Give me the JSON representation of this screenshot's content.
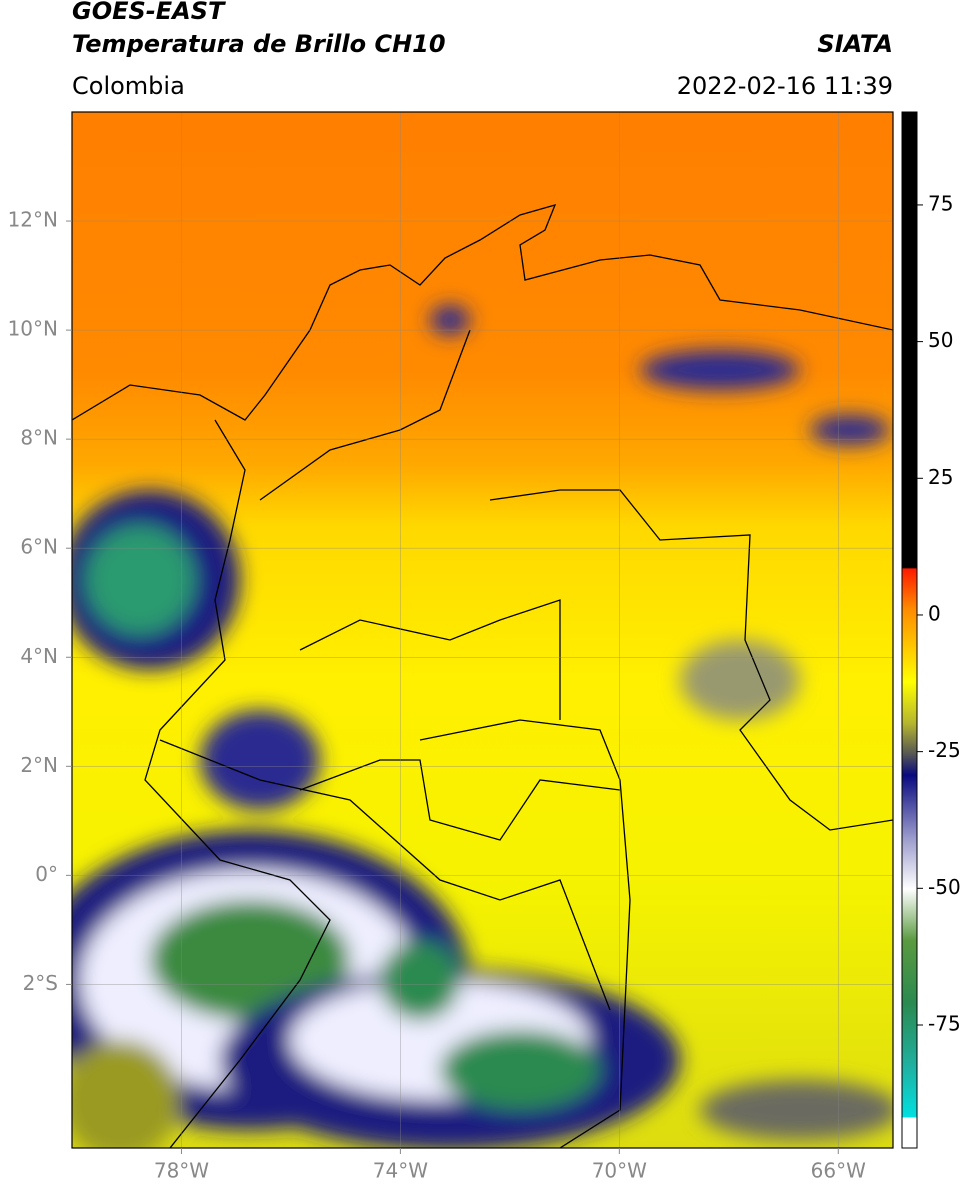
{
  "header": {
    "title": "GOES-EAST",
    "subtitle": "Temperatura de Brillo CH10",
    "region": "Colombia",
    "source": "SIATA",
    "datetime": "2022-02-16 11:39"
  },
  "map": {
    "xlim": [
      -80,
      -65
    ],
    "ylim": [
      -5,
      14
    ],
    "xticks": [
      {
        "value": -78,
        "label": "78°W"
      },
      {
        "value": -74,
        "label": "74°W"
      },
      {
        "value": -70,
        "label": "70°W"
      },
      {
        "value": -66,
        "label": "66°W"
      }
    ],
    "yticks": [
      {
        "value": 12,
        "label": "12°N"
      },
      {
        "value": 10,
        "label": "10°N"
      },
      {
        "value": 8,
        "label": "8°N"
      },
      {
        "value": 6,
        "label": "6°N"
      },
      {
        "value": 4,
        "label": "4°N"
      },
      {
        "value": 2,
        "label": "2°N"
      },
      {
        "value": 0,
        "label": "0°"
      },
      {
        "value": -2,
        "label": "2°S"
      }
    ]
  },
  "colorbar": {
    "lim": [
      -97.5,
      92
    ],
    "ticks": [
      75,
      50,
      25,
      0,
      -25,
      -50,
      -75
    ]
  }
}
